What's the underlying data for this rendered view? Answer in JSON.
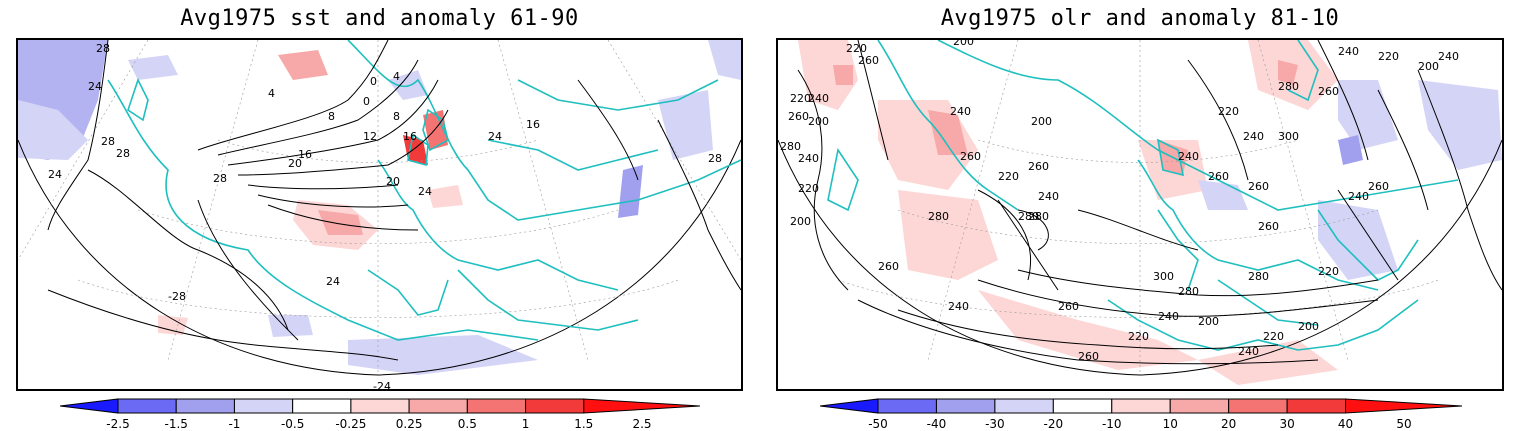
{
  "panels": [
    {
      "title": "Avg1975 sst and anomaly 61-90",
      "contour_labels": [
        "28",
        "24",
        "28",
        "28",
        "24",
        "4",
        "0",
        "8",
        "4",
        "0",
        "8",
        "12",
        "16",
        "20",
        "16",
        "20",
        "24",
        "28",
        "-28",
        "24",
        "-24",
        "28",
        "24",
        "16"
      ],
      "colorbar": {
        "labels": [
          "-2.5",
          "-1.5",
          "-1",
          "-0.5",
          "-0.25",
          "0.25",
          "0.5",
          "1",
          "1.5",
          "2.5"
        ],
        "colors": [
          "#1a1aff",
          "#6a6af5",
          "#a0a0ee",
          "#d4d4f7",
          "#ffffff",
          "#fdd6d6",
          "#f7a8a8",
          "#f47474",
          "#f23a3a",
          "#ff1010"
        ]
      }
    },
    {
      "title": "Avg1975 olr and anomaly 81-10",
      "contour_labels": [
        "220",
        "200",
        "260",
        "240",
        "220",
        "200",
        "260",
        "280",
        "240",
        "220",
        "200",
        "240",
        "260",
        "200",
        "220",
        "260",
        "240",
        "220",
        "240",
        "260",
        "280",
        "260",
        "240",
        "280",
        "280",
        "260",
        "300",
        "240",
        "220",
        "240",
        "260",
        "200",
        "280",
        "300",
        "280",
        "260",
        "240",
        "220",
        "260",
        "240",
        "200",
        "220",
        "280",
        "260",
        "220",
        "240",
        "260",
        "200",
        "240"
      ],
      "colorbar": {
        "labels": [
          "-50",
          "-40",
          "-30",
          "-20",
          "-10",
          "10",
          "20",
          "30",
          "40",
          "50"
        ],
        "colors": [
          "#1a1aff",
          "#6a6af5",
          "#a0a0ee",
          "#d4d4f7",
          "#ffffff",
          "#fdd6d6",
          "#f7a8a8",
          "#f47474",
          "#f23a3a",
          "#ff1010"
        ]
      }
    }
  ]
}
